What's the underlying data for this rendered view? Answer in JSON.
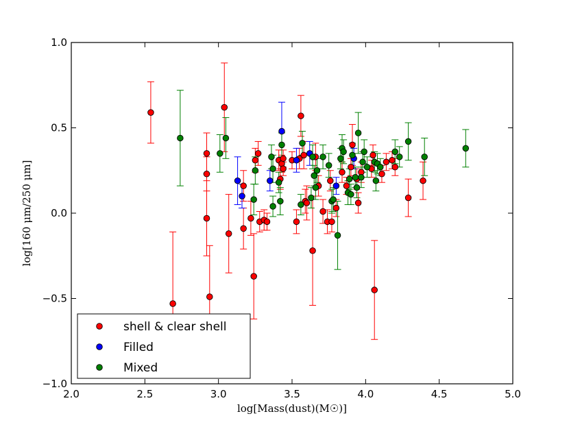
{
  "chart_data": {
    "type": "scatter",
    "title": "",
    "xlabel": "log[Mass(dust)(M☉)]",
    "ylabel": "log[160 μm/250 μm]",
    "xlim": [
      2.0,
      5.0
    ],
    "ylim": [
      -1.0,
      1.0
    ],
    "x_ticks": [
      "2.0",
      "2.5",
      "3.0",
      "3.5",
      "4.0",
      "4.5",
      "5.0"
    ],
    "y_ticks": [
      "1.0",
      "0.5",
      "0.0",
      "−0.5",
      "−1.0"
    ],
    "grid": false,
    "legend_position": "lower-left",
    "series": [
      {
        "name": "shell & clear shell",
        "color": "#ff0000",
        "points": [
          {
            "x": 2.54,
            "y": 0.59,
            "err": 0.18
          },
          {
            "x": 2.69,
            "y": -0.53,
            "err": 0.42
          },
          {
            "x": 2.92,
            "y": 0.35,
            "err": 0.12
          },
          {
            "x": 2.92,
            "y": 0.23,
            "err": 0.1
          },
          {
            "x": 2.92,
            "y": -0.03,
            "err": 0.22
          },
          {
            "x": 2.94,
            "y": -0.49,
            "err": 0.3
          },
          {
            "x": 3.04,
            "y": 0.62,
            "err": 0.26
          },
          {
            "x": 3.07,
            "y": -0.12,
            "err": 0.23
          },
          {
            "x": 3.17,
            "y": 0.16,
            "err": 0.09
          },
          {
            "x": 3.17,
            "y": -0.09,
            "err": 0.12
          },
          {
            "x": 3.22,
            "y": -0.03,
            "err": 0.1
          },
          {
            "x": 3.24,
            "y": -0.37,
            "err": 0.25
          },
          {
            "x": 3.25,
            "y": 0.31,
            "err": 0.07
          },
          {
            "x": 3.27,
            "y": 0.35,
            "err": 0.07
          },
          {
            "x": 3.28,
            "y": -0.05,
            "err": 0.06
          },
          {
            "x": 3.31,
            "y": -0.04,
            "err": 0.06
          },
          {
            "x": 3.33,
            "y": -0.05,
            "err": 0.05
          },
          {
            "x": 3.41,
            "y": 0.31,
            "err": 0.06
          },
          {
            "x": 3.42,
            "y": 0.2,
            "err": 0.06
          },
          {
            "x": 3.43,
            "y": 0.29,
            "err": 0.05
          },
          {
            "x": 3.44,
            "y": 0.32,
            "err": 0.05
          },
          {
            "x": 3.44,
            "y": 0.26,
            "err": 0.04
          },
          {
            "x": 3.5,
            "y": 0.31,
            "err": 0.05
          },
          {
            "x": 3.53,
            "y": -0.05,
            "err": 0.07
          },
          {
            "x": 3.55,
            "y": 0.32,
            "err": 0.06
          },
          {
            "x": 3.56,
            "y": 0.57,
            "err": 0.12
          },
          {
            "x": 3.58,
            "y": 0.34,
            "err": 0.08
          },
          {
            "x": 3.59,
            "y": 0.07,
            "err": 0.07
          },
          {
            "x": 3.6,
            "y": 0.06,
            "err": 0.1
          },
          {
            "x": 3.64,
            "y": -0.22,
            "err": 0.32
          },
          {
            "x": 3.66,
            "y": 0.33,
            "err": 0.08
          },
          {
            "x": 3.68,
            "y": 0.16,
            "err": 0.06
          },
          {
            "x": 3.71,
            "y": 0.01,
            "err": 0.07
          },
          {
            "x": 3.74,
            "y": -0.05,
            "err": 0.07
          },
          {
            "x": 3.76,
            "y": 0.19,
            "err": 0.06
          },
          {
            "x": 3.77,
            "y": -0.05,
            "err": 0.06
          },
          {
            "x": 3.8,
            "y": 0.03,
            "err": 0.05
          },
          {
            "x": 3.84,
            "y": 0.24,
            "err": 0.06
          },
          {
            "x": 3.87,
            "y": 0.16,
            "err": 0.05
          },
          {
            "x": 3.9,
            "y": 0.27,
            "err": 0.05
          },
          {
            "x": 3.91,
            "y": 0.4,
            "err": 0.12
          },
          {
            "x": 3.94,
            "y": 0.2,
            "err": 0.06
          },
          {
            "x": 3.95,
            "y": 0.06,
            "err": 0.06
          },
          {
            "x": 3.97,
            "y": 0.24,
            "err": 0.06
          },
          {
            "x": 4.04,
            "y": 0.26,
            "err": 0.05
          },
          {
            "x": 4.05,
            "y": 0.34,
            "err": 0.06
          },
          {
            "x": 4.06,
            "y": -0.45,
            "err": 0.29
          },
          {
            "x": 4.11,
            "y": 0.23,
            "err": 0.05
          },
          {
            "x": 4.14,
            "y": 0.3,
            "err": 0.05
          },
          {
            "x": 4.18,
            "y": 0.31,
            "err": 0.05
          },
          {
            "x": 4.2,
            "y": 0.27,
            "err": 0.05
          },
          {
            "x": 4.29,
            "y": 0.09,
            "err": 0.11
          },
          {
            "x": 4.39,
            "y": 0.19,
            "err": 0.11
          }
        ]
      },
      {
        "name": "Filled",
        "color": "#0000ff",
        "points": [
          {
            "x": 3.13,
            "y": 0.19,
            "err": 0.14
          },
          {
            "x": 3.16,
            "y": 0.1,
            "err": 0.07
          },
          {
            "x": 3.35,
            "y": 0.19,
            "err": 0.06
          },
          {
            "x": 3.43,
            "y": 0.48,
            "err": 0.17
          },
          {
            "x": 3.53,
            "y": 0.31,
            "err": 0.07
          },
          {
            "x": 3.62,
            "y": 0.35,
            "err": 0.07
          },
          {
            "x": 3.8,
            "y": 0.16,
            "err": 0.05
          },
          {
            "x": 3.92,
            "y": 0.32,
            "err": 0.06
          }
        ]
      },
      {
        "name": "Mixed",
        "color": "#008000",
        "points": [
          {
            "x": 2.74,
            "y": 0.44,
            "err": 0.28
          },
          {
            "x": 3.01,
            "y": 0.35,
            "err": 0.11
          },
          {
            "x": 3.05,
            "y": 0.44,
            "err": 0.12
          },
          {
            "x": 3.24,
            "y": 0.08,
            "err": 0.09
          },
          {
            "x": 3.25,
            "y": 0.25,
            "err": 0.08
          },
          {
            "x": 3.36,
            "y": 0.33,
            "err": 0.07
          },
          {
            "x": 3.37,
            "y": 0.26,
            "err": 0.08
          },
          {
            "x": 3.37,
            "y": 0.04,
            "err": 0.06
          },
          {
            "x": 3.41,
            "y": 0.18,
            "err": 0.06
          },
          {
            "x": 3.42,
            "y": 0.07,
            "err": 0.08
          },
          {
            "x": 3.43,
            "y": 0.4,
            "err": 0.07
          },
          {
            "x": 3.56,
            "y": 0.05,
            "err": 0.06
          },
          {
            "x": 3.57,
            "y": 0.41,
            "err": 0.07
          },
          {
            "x": 3.63,
            "y": 0.09,
            "err": 0.06
          },
          {
            "x": 3.64,
            "y": 0.33,
            "err": 0.07
          },
          {
            "x": 3.65,
            "y": 0.22,
            "err": 0.06
          },
          {
            "x": 3.66,
            "y": 0.15,
            "err": 0.07
          },
          {
            "x": 3.67,
            "y": 0.25,
            "err": 0.07
          },
          {
            "x": 3.71,
            "y": 0.33,
            "err": 0.07
          },
          {
            "x": 3.75,
            "y": 0.28,
            "err": 0.07
          },
          {
            "x": 3.77,
            "y": 0.07,
            "err": 0.07
          },
          {
            "x": 3.78,
            "y": 0.08,
            "err": 0.07
          },
          {
            "x": 3.81,
            "y": -0.13,
            "err": 0.2
          },
          {
            "x": 3.83,
            "y": 0.32,
            "err": 0.06
          },
          {
            "x": 3.84,
            "y": 0.38,
            "err": 0.08
          },
          {
            "x": 3.85,
            "y": 0.36,
            "err": 0.07
          },
          {
            "x": 3.88,
            "y": 0.12,
            "err": 0.07
          },
          {
            "x": 3.89,
            "y": 0.2,
            "err": 0.06
          },
          {
            "x": 3.9,
            "y": 0.11,
            "err": 0.06
          },
          {
            "x": 3.91,
            "y": 0.34,
            "err": 0.07
          },
          {
            "x": 3.93,
            "y": 0.21,
            "err": 0.06
          },
          {
            "x": 3.94,
            "y": 0.15,
            "err": 0.06
          },
          {
            "x": 3.95,
            "y": 0.47,
            "err": 0.12
          },
          {
            "x": 3.97,
            "y": 0.21,
            "err": 0.06
          },
          {
            "x": 3.98,
            "y": 0.3,
            "err": 0.06
          },
          {
            "x": 3.99,
            "y": 0.36,
            "err": 0.07
          },
          {
            "x": 4.01,
            "y": 0.27,
            "err": 0.06
          },
          {
            "x": 4.06,
            "y": 0.3,
            "err": 0.06
          },
          {
            "x": 4.07,
            "y": 0.19,
            "err": 0.06
          },
          {
            "x": 4.08,
            "y": 0.29,
            "err": 0.06
          },
          {
            "x": 4.1,
            "y": 0.27,
            "err": 0.05
          },
          {
            "x": 4.2,
            "y": 0.36,
            "err": 0.07
          },
          {
            "x": 4.23,
            "y": 0.33,
            "err": 0.06
          },
          {
            "x": 4.29,
            "y": 0.42,
            "err": 0.11
          },
          {
            "x": 4.4,
            "y": 0.33,
            "err": 0.11
          },
          {
            "x": 4.68,
            "y": 0.38,
            "err": 0.11
          }
        ]
      }
    ]
  }
}
